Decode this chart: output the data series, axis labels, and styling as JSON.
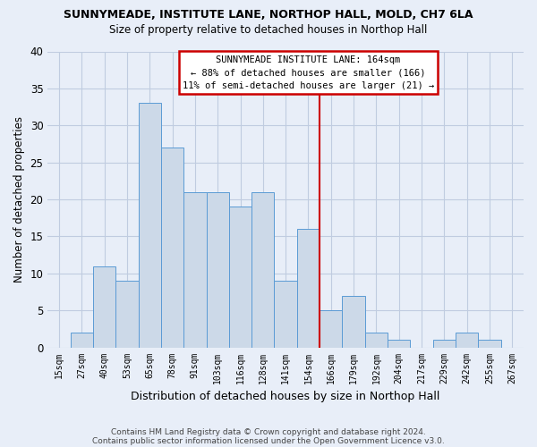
{
  "title": "SUNNYMEADE, INSTITUTE LANE, NORTHOP HALL, MOLD, CH7 6LA",
  "subtitle": "Size of property relative to detached houses in Northop Hall",
  "xlabel": "Distribution of detached houses by size in Northop Hall",
  "ylabel": "Number of detached properties",
  "footnote1": "Contains HM Land Registry data © Crown copyright and database right 2024.",
  "footnote2": "Contains public sector information licensed under the Open Government Licence v3.0.",
  "categories": [
    "15sqm",
    "27sqm",
    "40sqm",
    "53sqm",
    "65sqm",
    "78sqm",
    "91sqm",
    "103sqm",
    "116sqm",
    "128sqm",
    "141sqm",
    "154sqm",
    "166sqm",
    "179sqm",
    "192sqm",
    "204sqm",
    "217sqm",
    "229sqm",
    "242sqm",
    "255sqm",
    "267sqm"
  ],
  "values": [
    0,
    2,
    11,
    9,
    33,
    27,
    21,
    21,
    19,
    21,
    9,
    16,
    5,
    7,
    2,
    1,
    0,
    1,
    2,
    1,
    0
  ],
  "bar_color": "#ccd9e8",
  "bar_edge_color": "#5b9bd5",
  "marker_line_color": "#cc0000",
  "annotation_line1": "SUNNYMEADE INSTITUTE LANE: 164sqm",
  "annotation_line2": "← 88% of detached houses are smaller (166)",
  "annotation_line3": "11% of semi-detached houses are larger (21) →",
  "annotation_box_color": "#ffffff",
  "annotation_box_edge": "#cc0000",
  "ylim": [
    0,
    40
  ],
  "yticks": [
    0,
    5,
    10,
    15,
    20,
    25,
    30,
    35,
    40
  ],
  "background_color": "#e8eef8",
  "grid_color": "#c0cce0"
}
